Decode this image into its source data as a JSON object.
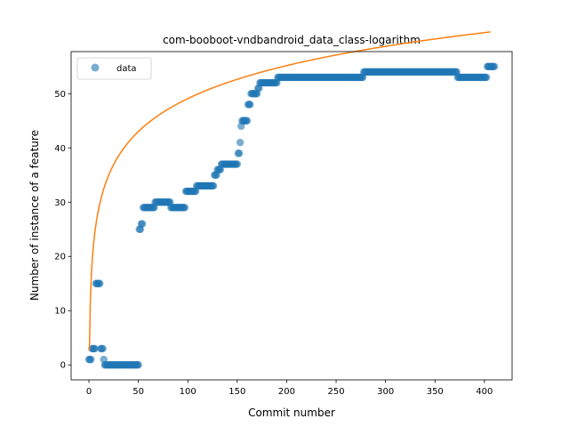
{
  "chart_data": {
    "type": "scatter",
    "title": "com-booboot-vndbandroid_data_class-logarithm",
    "xlabel": "Commit number",
    "ylabel": "Number of instance of a feature",
    "xlim": [
      -18,
      428
    ],
    "ylim": [
      -2.75,
      57.75
    ],
    "xticks": [
      0,
      50,
      100,
      150,
      200,
      250,
      300,
      350,
      400
    ],
    "yticks": [
      0,
      10,
      20,
      30,
      40,
      50
    ],
    "grid": false,
    "legend": {
      "placement": "upper left",
      "entries": [
        "data"
      ]
    },
    "series": [
      {
        "name": "data",
        "style": "markers",
        "color": "#1f77b4",
        "segments": [
          {
            "from": 0,
            "to": 2,
            "value": 1
          },
          {
            "from": 3,
            "to": 6,
            "value": 3
          },
          {
            "from": 7,
            "to": 11,
            "value": 15
          },
          {
            "from": 12,
            "to": 14,
            "value": 3
          },
          {
            "from": 15,
            "to": 15,
            "value": 1
          },
          {
            "from": 16,
            "to": 50,
            "value": 0
          },
          {
            "from": 51,
            "to": 52,
            "value": 25
          },
          {
            "from": 53,
            "to": 54,
            "value": 26
          },
          {
            "from": 55,
            "to": 66,
            "value": 29
          },
          {
            "from": 67,
            "to": 82,
            "value": 30
          },
          {
            "from": 83,
            "to": 97,
            "value": 29
          },
          {
            "from": 98,
            "to": 108,
            "value": 32
          },
          {
            "from": 109,
            "to": 126,
            "value": 33
          },
          {
            "from": 127,
            "to": 129,
            "value": 35
          },
          {
            "from": 130,
            "to": 133,
            "value": 36
          },
          {
            "from": 134,
            "to": 150,
            "value": 37
          },
          {
            "from": 151,
            "to": 152,
            "value": 39
          },
          {
            "from": 153,
            "to": 153,
            "value": 41
          },
          {
            "from": 154,
            "to": 154,
            "value": 44
          },
          {
            "from": 155,
            "to": 160,
            "value": 45
          },
          {
            "from": 161,
            "to": 163,
            "value": 48
          },
          {
            "from": 164,
            "to": 170,
            "value": 50
          },
          {
            "from": 171,
            "to": 172,
            "value": 51
          },
          {
            "from": 173,
            "to": 190,
            "value": 52
          },
          {
            "from": 191,
            "to": 277,
            "value": 53
          },
          {
            "from": 278,
            "to": 372,
            "value": 54
          },
          {
            "from": 373,
            "to": 402,
            "value": 53
          },
          {
            "from": 403,
            "to": 410,
            "value": 55
          }
        ]
      },
      {
        "name": "",
        "style": "line",
        "color": "#ff7f0e",
        "fit": {
          "a": 8.77,
          "b": 8.7,
          "x_start": 0.5,
          "x_end": 406
        }
      }
    ]
  }
}
